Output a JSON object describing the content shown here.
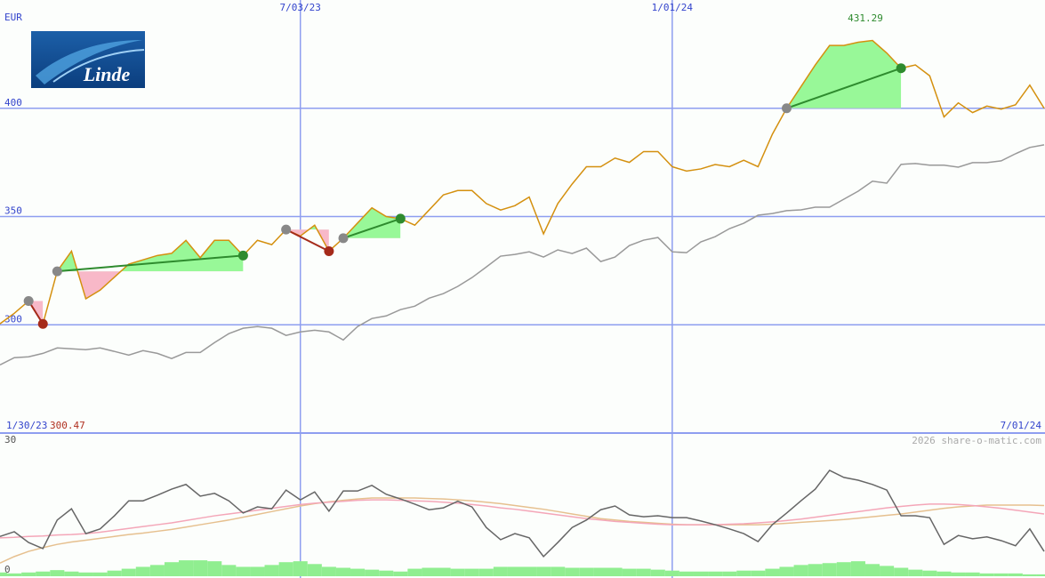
{
  "logo": "Linde",
  "chart_data": [
    {
      "type": "line",
      "ylabel": "EUR",
      "categories": [
        "1/30/23",
        null,
        null,
        null,
        null,
        null,
        null,
        null,
        null,
        null,
        null,
        null,
        null,
        null,
        null,
        null,
        null,
        null,
        null,
        null,
        null,
        "7/03/23",
        null,
        null,
        null,
        null,
        null,
        null,
        null,
        null,
        null,
        null,
        null,
        null,
        null,
        null,
        null,
        null,
        null,
        null,
        null,
        null,
        null,
        null,
        null,
        null,
        null,
        "1/01/24",
        null,
        null,
        null,
        null,
        null,
        null,
        null,
        null,
        null,
        null,
        null,
        null,
        null,
        null,
        null,
        null,
        null,
        null,
        null,
        null,
        null,
        null,
        null,
        null,
        null,
        "7/01/24"
      ],
      "ylim": [
        250,
        450
      ],
      "yticks": [
        300,
        350,
        400
      ],
      "grid": true,
      "series": [
        {
          "color": "#999999",
          "values": [
            281.5,
            284.8,
            285.2,
            286.8,
            289.3,
            288.9,
            288.5,
            289.3,
            287.7,
            286,
            288.1,
            286.8,
            284.4,
            287.2,
            287.2,
            291.8,
            295.9,
            298.4,
            299.2,
            298.4,
            295.1,
            296.7,
            297.5,
            296.7,
            293,
            299.2,
            302.9,
            304.1,
            307,
            308.6,
            312.3,
            314.4,
            317.7,
            321.8,
            326.7,
            331.7,
            332.5,
            333.7,
            331.3,
            334.6,
            332.9,
            335.4,
            329.2,
            331.3,
            336.6,
            339.1,
            340.3,
            333.7,
            333.3,
            338.3,
            340.7,
            344.4,
            346.9,
            350.6,
            351.4,
            352.7,
            353.1,
            354.3,
            354.3,
            358,
            361.7,
            366.3,
            365.4,
            374.1,
            374.5,
            373.7,
            373.7,
            372.8,
            374.9,
            374.9,
            375.7,
            379,
            381.9,
            383.1
          ]
        },
        {
          "color": "#d4900f",
          "values": [
            300.47,
            305.3,
            311,
            300.4,
            324.7,
            334,
            312,
            316,
            322,
            328,
            330,
            332,
            333,
            339,
            331,
            339,
            339,
            332,
            339,
            337,
            344,
            341,
            346,
            334,
            340,
            347,
            354,
            350,
            349,
            346,
            353,
            360,
            362,
            362,
            356,
            353,
            355,
            359,
            342,
            356,
            365,
            373,
            373,
            377,
            375,
            380,
            380,
            373,
            371,
            372,
            374,
            373,
            376,
            373,
            388,
            400,
            410,
            420,
            429,
            429,
            430.5,
            431.29,
            425.5,
            418.5,
            420,
            415,
            396,
            402.5,
            398,
            401,
            399.6,
            401.6,
            410.7,
            400
          ]
        }
      ],
      "signals": [
        {
          "from": 2,
          "to": 3,
          "color": "#a52a1a"
        },
        {
          "from": 4,
          "to": 17,
          "color": "#2e8b2e"
        },
        {
          "from": 20,
          "to": 23,
          "color": "#a52a1a"
        },
        {
          "from": 24,
          "to": 28,
          "color": "#2e8b2e"
        },
        {
          "from": 55,
          "to": 63,
          "color": "#2e8b2e"
        }
      ]
    },
    {
      "type": "line",
      "annotation": "2026 share-o-matic.com",
      "ylim": [
        0,
        30
      ],
      "yticks": [
        0,
        30
      ],
      "series": [
        {
          "type": "bar",
          "color": "#90ee90",
          "values": [
            0.8,
            0.6,
            0.8,
            1,
            1.3,
            1,
            0.8,
            0.8,
            1.2,
            1.6,
            2,
            2.4,
            3,
            3.4,
            3.4,
            3.2,
            2.4,
            2,
            2,
            2.4,
            3,
            3.2,
            2.6,
            2,
            1.8,
            1.6,
            1.4,
            1.2,
            1,
            1.6,
            1.8,
            1.8,
            1.6,
            1.6,
            1.6,
            2,
            2,
            2,
            2,
            2,
            1.8,
            1.8,
            1.8,
            1.8,
            1.6,
            1.6,
            1.4,
            1.2,
            1,
            1,
            1,
            1,
            1.2,
            1.2,
            1.6,
            2,
            2.4,
            2.6,
            2.8,
            3,
            3.2,
            2.6,
            2.2,
            1.8,
            1.4,
            1.2,
            1,
            0.8,
            0.8,
            0.6,
            0.6,
            0.6,
            0.4,
            0.4
          ]
        },
        {
          "color": "#e6c08f",
          "values": [
            2.8,
            4.2,
            5.3,
            6.1,
            6.8,
            7.3,
            7.7,
            8.1,
            8.5,
            8.9,
            9.2,
            9.6,
            10,
            10.5,
            11,
            11.5,
            12,
            12.6,
            13.2,
            13.8,
            14.4,
            15,
            15.5,
            15.9,
            16.2,
            16.5,
            16.7,
            16.7,
            16.7,
            16.7,
            16.6,
            16.5,
            16.3,
            16.1,
            15.8,
            15.5,
            15.1,
            14.7,
            14.3,
            13.8,
            13.3,
            12.8,
            12.3,
            12,
            11.7,
            11.5,
            11.3,
            11.1,
            11,
            11,
            11,
            11,
            11,
            11,
            11.1,
            11.3,
            11.5,
            11.7,
            11.9,
            12.1,
            12.4,
            12.7,
            13,
            13.3,
            13.7,
            14.1,
            14.5,
            14.8,
            15,
            15.2,
            15.2,
            15.2,
            15.2,
            15.1
          ]
        },
        {
          "color": "#f4a6b8",
          "values": [
            8.2,
            8.3,
            8.5,
            8.6,
            8.8,
            8.9,
            9.1,
            9.4,
            9.8,
            10.2,
            10.6,
            11,
            11.4,
            11.9,
            12.4,
            12.9,
            13.3,
            13.7,
            14.1,
            14.5,
            14.9,
            15.3,
            15.6,
            15.8,
            16,
            16.2,
            16.3,
            16.3,
            16.2,
            16.1,
            16,
            15.8,
            15.6,
            15.3,
            15,
            14.6,
            14.3,
            13.9,
            13.5,
            13.1,
            12.7,
            12.3,
            12,
            11.7,
            11.5,
            11.3,
            11.1,
            11,
            11,
            11,
            11,
            11.1,
            11.2,
            11.4,
            11.6,
            11.9,
            12.2,
            12.6,
            13,
            13.4,
            13.8,
            14.2,
            14.6,
            14.9,
            15.2,
            15.4,
            15.4,
            15.3,
            15.1,
            14.8,
            14.5,
            14.1,
            13.7,
            13.3
          ]
        },
        {
          "color": "#666666",
          "values": [
            8.5,
            9.5,
            7.2,
            5.9,
            12,
            14.4,
            9.1,
            10.1,
            12.9,
            16.1,
            16.1,
            17.3,
            18.6,
            19.6,
            17.1,
            17.7,
            16.1,
            13.5,
            14.8,
            14.4,
            18.4,
            16.3,
            18,
            13.9,
            18.2,
            18.2,
            19.4,
            17.5,
            16.5,
            15.4,
            14.2,
            14.6,
            16,
            14.8,
            10.4,
            7.8,
            9.1,
            8.2,
            4.2,
            7.2,
            10.4,
            12,
            14.2,
            15,
            13.1,
            12.7,
            12.9,
            12.5,
            12.5,
            11.8,
            11,
            10.1,
            9.1,
            7.4,
            11,
            13.5,
            16.1,
            18.6,
            22.6,
            21.1,
            20.5,
            19.6,
            18.4,
            12.9,
            12.9,
            12.5,
            6.8,
            8.7,
            8,
            8.4,
            7.6,
            6.5,
            10.1,
            5.3
          ]
        }
      ]
    }
  ]
}
